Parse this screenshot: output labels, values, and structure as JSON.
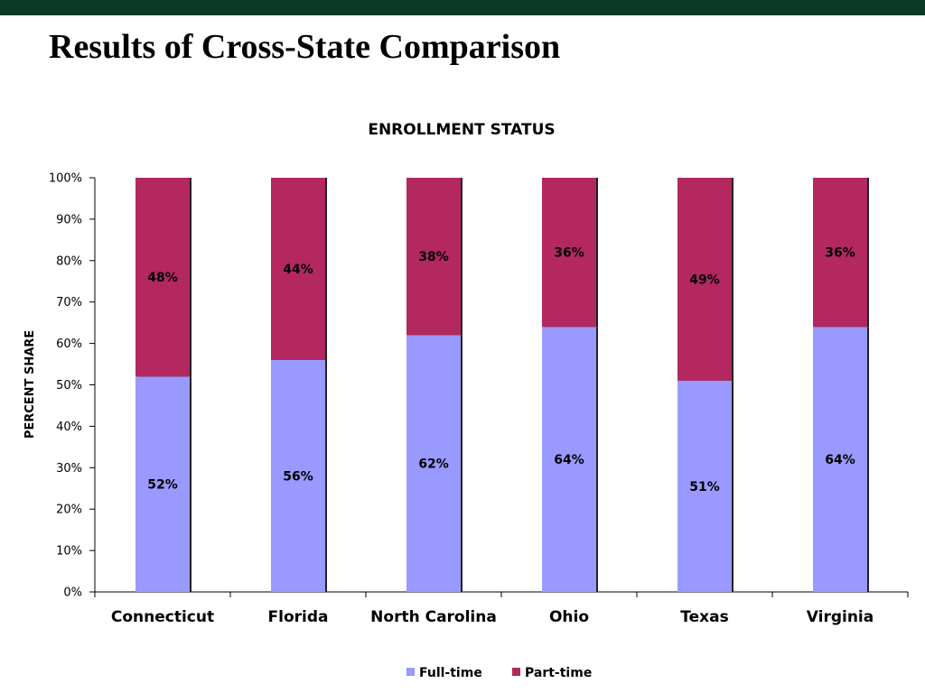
{
  "slide": {
    "title": "Results of Cross-State Comparison",
    "top_bar_color": "#0b3a26"
  },
  "chart_data": {
    "type": "bar",
    "stacked": true,
    "title": "ENROLLMENT STATUS",
    "xlabel": "",
    "ylabel": "PERCENT SHARE",
    "ylim": [
      0,
      100
    ],
    "yticks": [
      "0%",
      "10%",
      "20%",
      "30%",
      "40%",
      "50%",
      "60%",
      "70%",
      "80%",
      "90%",
      "100%"
    ],
    "grid": false,
    "legend_position": "bottom",
    "categories": [
      "Connecticut",
      "Florida",
      "North Carolina",
      "Ohio",
      "Texas",
      "Virginia"
    ],
    "series": [
      {
        "name": "Full-time",
        "color": "#9999ff",
        "values": [
          52,
          56,
          62,
          64,
          51,
          64
        ],
        "labels": [
          "52%",
          "56%",
          "62%",
          "64%",
          "51%",
          "64%"
        ]
      },
      {
        "name": "Part-time",
        "color": "#b2285f",
        "values": [
          48,
          44,
          38,
          36,
          49,
          36
        ],
        "labels": [
          "48%",
          "44%",
          "38%",
          "36%",
          "49%",
          "36%"
        ]
      }
    ]
  }
}
